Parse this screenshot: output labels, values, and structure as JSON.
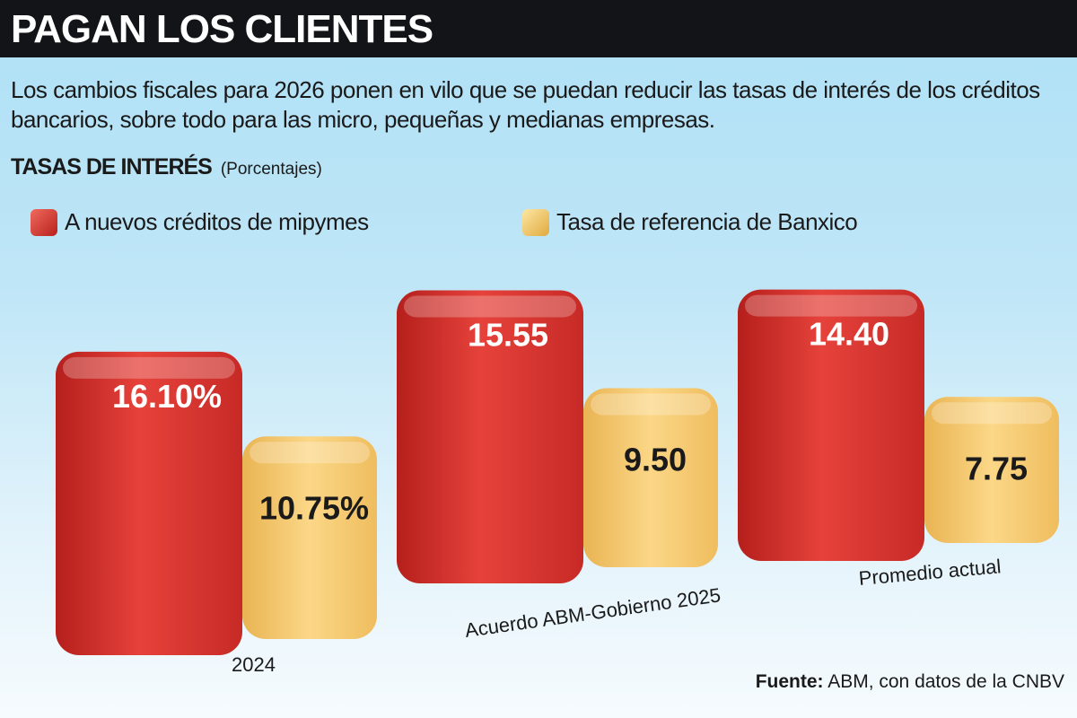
{
  "header": {
    "title": "PAGAN LOS CLIENTES"
  },
  "description": "Los cambios fiscales para 2026 ponen en vilo que se puedan reducir las tasas de interés de los créditos bancarios, sobre todo para las micro, pequeñas y medianas empresas.",
  "chart_data": {
    "type": "bar",
    "title": "TASAS DE INTERÉS",
    "unit": "(Porcentajes)",
    "categories": [
      "2024",
      "Acuerdo ABM-Gobierno 2025",
      "Promedio actual"
    ],
    "series": [
      {
        "name": "A nuevos créditos de mipymes",
        "color": "#d9322e",
        "values": [
          16.1,
          15.55,
          14.4
        ],
        "labels": [
          "16.10%",
          "15.55",
          "14.40"
        ]
      },
      {
        "name": "Tasa de referencia de Banxico",
        "color": "#f7c96a",
        "values": [
          10.75,
          9.5,
          7.75
        ],
        "labels": [
          "10.75%",
          "9.50",
          "7.75"
        ]
      }
    ],
    "legend": "top",
    "grid": false
  },
  "source": {
    "label": "Fuente:",
    "text": " ABM, con datos de la CNBV"
  }
}
